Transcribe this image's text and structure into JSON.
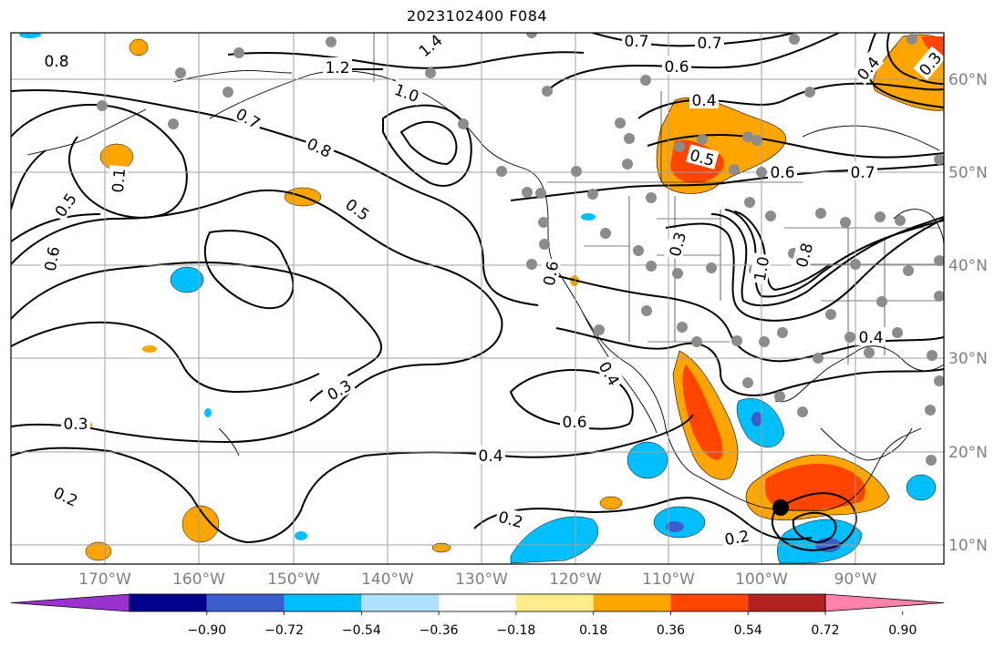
{
  "title": "2023102400 F084",
  "map": {
    "lat_labels": [
      "60°N",
      "50°N",
      "40°N",
      "30°N",
      "20°N",
      "10°N"
    ],
    "lon_labels": [
      "170°W",
      "160°W",
      "150°W",
      "140°W",
      "130°W",
      "120°W",
      "110°W",
      "100°W",
      "90°W"
    ],
    "contour_labels": [
      "0.8",
      "1.2",
      "1.4",
      "1.0",
      "0.7",
      "0.8",
      "0.5",
      "0.5",
      "0.6",
      "0.1",
      "0.3",
      "0.3",
      "0.4",
      "0.6",
      "0.2",
      "0.2",
      "0.2",
      "0.7",
      "0.7",
      "0.6",
      "0.4",
      "0.5",
      "0.6",
      "0.7",
      "0.3",
      "1.0",
      "0.8",
      "0.6",
      "0.4",
      "0.4",
      "0.4",
      "0.3"
    ],
    "colors": {
      "line": "#000000",
      "grid": "#a0a0a0",
      "station": "#8c8c8c",
      "marker": "#000000"
    }
  },
  "colorbar": {
    "labels": [
      "−0.90",
      "−0.72",
      "−0.54",
      "−0.36",
      "−0.18",
      "0.18",
      "0.36",
      "0.54",
      "0.72",
      "0.90"
    ],
    "colors": [
      "#9a32cd",
      "#00008b",
      "#3a5fcd",
      "#00bfff",
      "#b0e2ff",
      "#ffffff",
      "#ffec8b",
      "#ffa500",
      "#ff4500",
      "#b22222",
      "#ff82ab"
    ]
  }
}
